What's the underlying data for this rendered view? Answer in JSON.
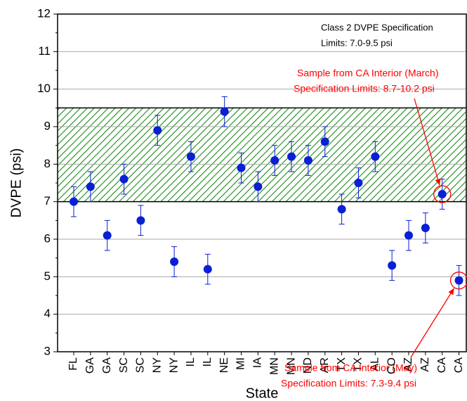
{
  "chart_data": {
    "type": "scatter",
    "xlabel": "State",
    "ylabel": "DVPE (psi)",
    "categories": [
      "FL",
      "GA",
      "GA",
      "SC",
      "SC",
      "NY",
      "NY",
      "IL",
      "IL",
      "NE",
      "MI",
      "IA",
      "MN",
      "MN",
      "ND",
      "AR",
      "TX",
      "TX",
      "AL",
      "CO",
      "AZ",
      "AZ",
      "CA",
      "CA"
    ],
    "values": [
      7.0,
      7.4,
      6.1,
      7.6,
      6.5,
      8.9,
      5.4,
      8.2,
      5.2,
      9.4,
      7.9,
      7.4,
      8.1,
      8.2,
      8.1,
      8.6,
      6.8,
      7.5,
      8.2,
      5.3,
      6.1,
      6.3,
      7.2,
      4.9
    ],
    "errors": [
      0.4,
      0.4,
      0.4,
      0.4,
      0.4,
      0.4,
      0.4,
      0.4,
      0.4,
      0.4,
      0.4,
      0.4,
      0.4,
      0.4,
      0.4,
      0.4,
      0.4,
      0.4,
      0.4,
      0.4,
      0.4,
      0.4,
      0.4,
      0.4
    ],
    "color": "#0a1fd6",
    "ylim": [
      3,
      12
    ],
    "yticks": [
      3,
      4,
      5,
      6,
      7,
      8,
      9,
      10,
      11,
      12
    ],
    "grid": true,
    "spec_band": {
      "range": [
        7.0,
        9.5
      ],
      "color": "#1a8a1a"
    },
    "annotations": [
      {
        "lines": [
          "Class 2 DVPE Specification",
          "Limits: 7.0-9.5 psi"
        ],
        "color": "#000000"
      },
      {
        "lines": [
          "Sample from CA Interior (March)",
          "Specification Limits: 8.7-10.2 psi"
        ],
        "color": "#ff0000"
      },
      {
        "lines": [
          "Sample from CA Interior (May)",
          "Specification Limits: 7.3-9.4 psi"
        ],
        "color": "#ff0000"
      }
    ]
  }
}
